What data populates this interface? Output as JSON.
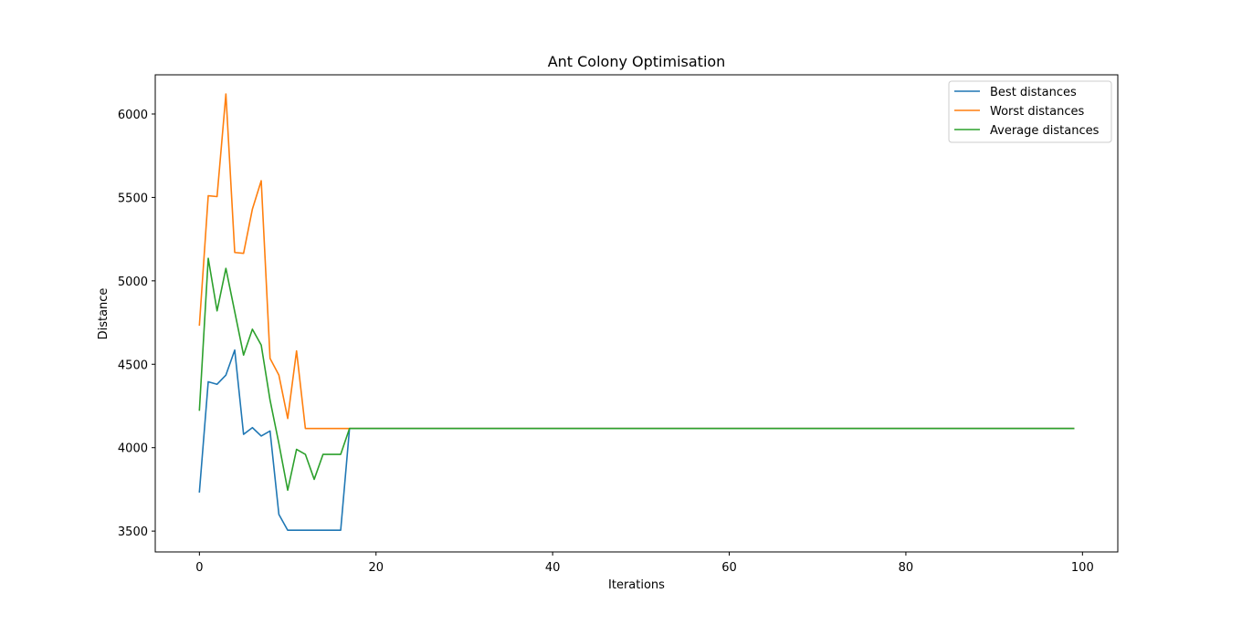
{
  "chart_data": {
    "type": "line",
    "title": "Ant Colony Optimisation",
    "xlabel": "Iterations",
    "ylabel": "Distance",
    "xlim": [
      -5,
      104
    ],
    "ylim": [
      3375,
      6235
    ],
    "x_ticks": [
      0,
      20,
      40,
      60,
      80,
      100
    ],
    "x_tick_labels": [
      "0",
      "20",
      "40",
      "60",
      "80",
      "100"
    ],
    "y_ticks": [
      3500,
      4000,
      4500,
      5000,
      5500,
      6000
    ],
    "y_tick_labels": [
      "3500",
      "4000",
      "4500",
      "5000",
      "5500",
      "6000"
    ],
    "grid": false,
    "legend_position": "top-right",
    "x_count": 100,
    "series": [
      {
        "name": "Best distances",
        "color": "#1f77b4",
        "values": [
          3735,
          4395,
          4380,
          4435,
          4585,
          4080,
          4120,
          4070,
          4100,
          3600,
          3505,
          3505,
          3505,
          3505,
          3505,
          3505,
          3505,
          4115,
          4115,
          4115,
          4115,
          4115,
          4115,
          4115,
          4115,
          4115,
          4115,
          4115,
          4115,
          4115,
          4115,
          4115,
          4115,
          4115,
          4115,
          4115,
          4115,
          4115,
          4115,
          4115,
          4115,
          4115,
          4115,
          4115,
          4115,
          4115,
          4115,
          4115,
          4115,
          4115,
          4115,
          4115,
          4115,
          4115,
          4115,
          4115,
          4115,
          4115,
          4115,
          4115,
          4115,
          4115,
          4115,
          4115,
          4115,
          4115,
          4115,
          4115,
          4115,
          4115,
          4115,
          4115,
          4115,
          4115,
          4115,
          4115,
          4115,
          4115,
          4115,
          4115,
          4115,
          4115,
          4115,
          4115,
          4115,
          4115,
          4115,
          4115,
          4115,
          4115,
          4115,
          4115,
          4115,
          4115,
          4115,
          4115,
          4115,
          4115,
          4115,
          4115
        ]
      },
      {
        "name": "Worst distances",
        "color": "#ff7f0e",
        "values": [
          4735,
          5510,
          5505,
          6120,
          5170,
          5165,
          5430,
          5600,
          4535,
          4435,
          4175,
          4580,
          4115,
          4115,
          4115,
          4115,
          4115,
          4115,
          4115,
          4115,
          4115,
          4115,
          4115,
          4115,
          4115,
          4115,
          4115,
          4115,
          4115,
          4115,
          4115,
          4115,
          4115,
          4115,
          4115,
          4115,
          4115,
          4115,
          4115,
          4115,
          4115,
          4115,
          4115,
          4115,
          4115,
          4115,
          4115,
          4115,
          4115,
          4115,
          4115,
          4115,
          4115,
          4115,
          4115,
          4115,
          4115,
          4115,
          4115,
          4115,
          4115,
          4115,
          4115,
          4115,
          4115,
          4115,
          4115,
          4115,
          4115,
          4115,
          4115,
          4115,
          4115,
          4115,
          4115,
          4115,
          4115,
          4115,
          4115,
          4115,
          4115,
          4115,
          4115,
          4115,
          4115,
          4115,
          4115,
          4115,
          4115,
          4115,
          4115,
          4115,
          4115,
          4115,
          4115,
          4115,
          4115,
          4115,
          4115,
          4115
        ]
      },
      {
        "name": "Average distances",
        "color": "#2ca02c",
        "values": [
          4225,
          5135,
          4820,
          5075,
          4815,
          4555,
          4710,
          4615,
          4285,
          4025,
          3745,
          3990,
          3960,
          3810,
          3960,
          3960,
          3960,
          4115,
          4115,
          4115,
          4115,
          4115,
          4115,
          4115,
          4115,
          4115,
          4115,
          4115,
          4115,
          4115,
          4115,
          4115,
          4115,
          4115,
          4115,
          4115,
          4115,
          4115,
          4115,
          4115,
          4115,
          4115,
          4115,
          4115,
          4115,
          4115,
          4115,
          4115,
          4115,
          4115,
          4115,
          4115,
          4115,
          4115,
          4115,
          4115,
          4115,
          4115,
          4115,
          4115,
          4115,
          4115,
          4115,
          4115,
          4115,
          4115,
          4115,
          4115,
          4115,
          4115,
          4115,
          4115,
          4115,
          4115,
          4115,
          4115,
          4115,
          4115,
          4115,
          4115,
          4115,
          4115,
          4115,
          4115,
          4115,
          4115,
          4115,
          4115,
          4115,
          4115,
          4115,
          4115,
          4115,
          4115,
          4115,
          4115,
          4115,
          4115,
          4115,
          4115
        ]
      }
    ]
  }
}
